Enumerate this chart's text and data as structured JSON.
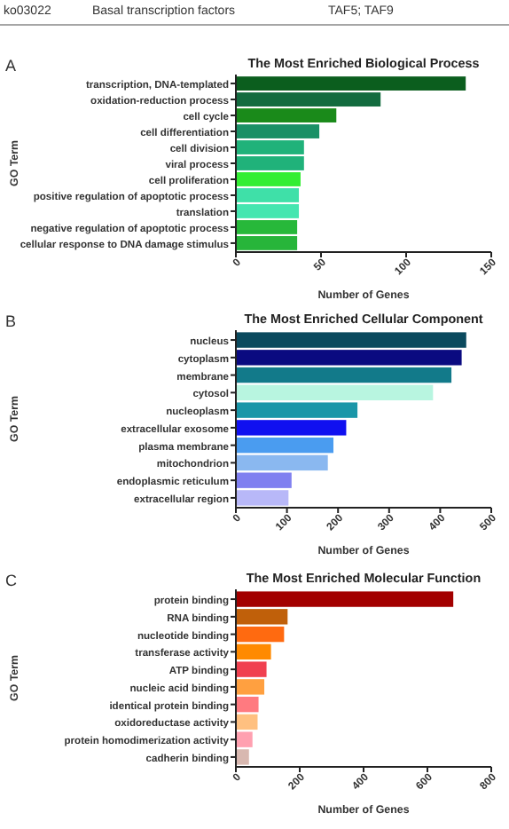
{
  "chart_data": [
    {
      "type": "bar",
      "orientation": "horizontal",
      "title": "The Most Enriched Biological Process",
      "xlabel": "Number of Genes",
      "ylabel": "GO Term",
      "annotations": [
        "ko03022",
        "Basal transcription factors",
        "TAF5; TAF9",
        "A"
      ],
      "categories": [
        "transcription, DNA-templated",
        "oxidation-reduction process",
        "cell cycle",
        "cell differentiation",
        "cell division",
        "viral process",
        "cell proliferation",
        "positive regulation of apoptotic process",
        "translation",
        "negative regulation of apoptotic process",
        "cellular response to DNA damage stimulus"
      ],
      "values": [
        135,
        85,
        59,
        49,
        40,
        40,
        38,
        37,
        37,
        36,
        36
      ],
      "colors": [
        "#0b5e1e",
        "#136b3f",
        "#1a8a1a",
        "#1a9066",
        "#20b27a",
        "#20b27a",
        "#33ee33",
        "#3fe0a8",
        "#45e6b0",
        "#27b83a",
        "#27b53a"
      ],
      "xlim": [
        0,
        150
      ],
      "xticks": [
        0,
        50,
        100,
        150
      ],
      "grid": false
    },
    {
      "type": "bar",
      "orientation": "horizontal",
      "title": "The Most Enriched Cellular Component",
      "xlabel": "Number of Genes",
      "ylabel": "GO Term",
      "annotations": [
        "B"
      ],
      "categories": [
        "nucleus",
        "cytoplasm",
        "membrane",
        "cytosol",
        "nucleoplasm",
        "extracellular exosome",
        "plasma membrane",
        "mitochondrion",
        "endoplasmic reticulum",
        "extracellular region"
      ],
      "values": [
        451,
        442,
        422,
        386,
        238,
        216,
        191,
        180,
        109,
        103
      ],
      "colors": [
        "#0b4a5e",
        "#0a0a80",
        "#127a8a",
        "#b8f5e0",
        "#1a96a8",
        "#1010f0",
        "#4a9cf0",
        "#8ab8f0",
        "#8080f0",
        "#b8b8f8"
      ],
      "xlim": [
        0,
        500
      ],
      "xticks": [
        0,
        100,
        200,
        300,
        400,
        500
      ],
      "grid": false
    },
    {
      "type": "bar",
      "orientation": "horizontal",
      "title": "The Most Enriched Molecular Function",
      "xlabel": "Number of Genes",
      "ylabel": "GO Term",
      "annotations": [
        "C"
      ],
      "categories": [
        "protein binding",
        "RNA binding",
        "nucleotide binding",
        "transferase activity",
        "ATP binding",
        "nucleic acid binding",
        "identical protein binding",
        "oxidoreductase activity",
        "protein homodimerization activity",
        "cadherin binding"
      ],
      "values": [
        681,
        162,
        151,
        110,
        96,
        89,
        71,
        68,
        52,
        41
      ],
      "colors": [
        "#a30000",
        "#c0600a",
        "#ff6a10",
        "#ff8a00",
        "#f04050",
        "#ffa040",
        "#ff7a80",
        "#ffc080",
        "#ffa0b0",
        "#d8b8b0"
      ],
      "xlim": [
        0,
        800
      ],
      "xticks": [
        0,
        200,
        400,
        600,
        800
      ],
      "grid": false
    }
  ]
}
